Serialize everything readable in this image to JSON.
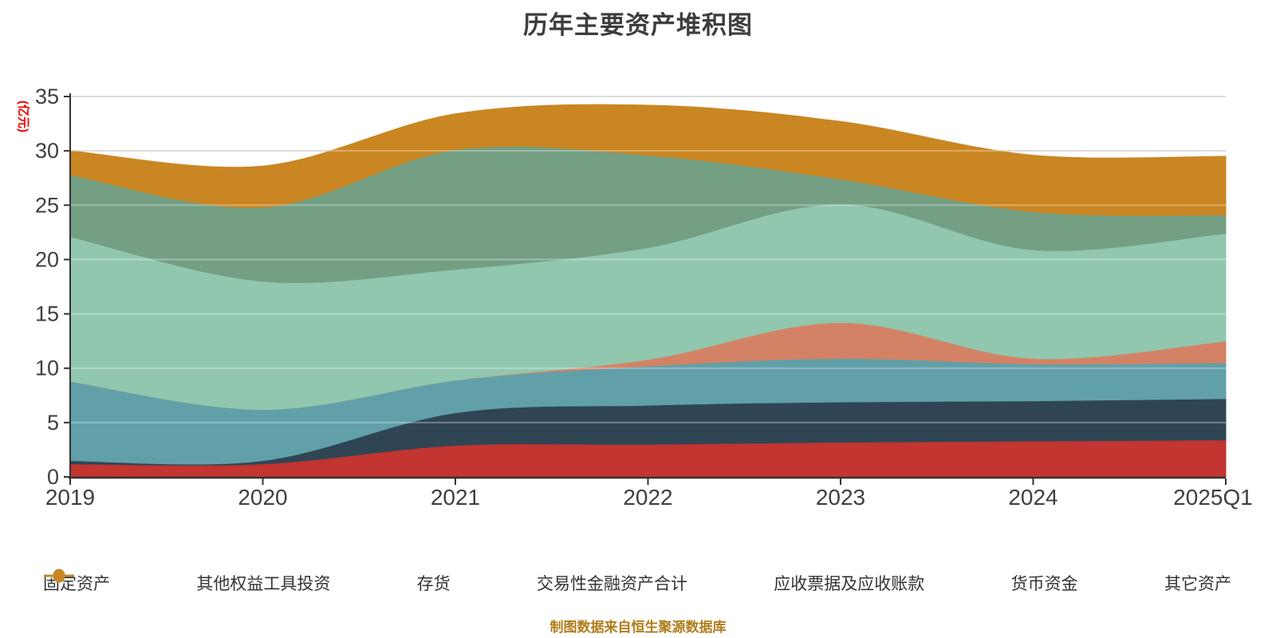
{
  "title": "历年主要资产堆积图",
  "y_axis_unit": "(亿元)",
  "footer": "制图数据来自恒生聚源数据库",
  "colors": {
    "title_text": "#3d3d3d",
    "axis_text": "#3f3f3f",
    "axis_line": "#333333",
    "gridline": "#cccccc",
    "grid_overlay": "rgba(255,255,255,0.32)",
    "unit_label": "#ee0000",
    "footer_text": "#b07d1a",
    "legend_text": "#333333",
    "background": "#ffffff"
  },
  "chart_data": {
    "type": "area",
    "stacked": true,
    "smooth": true,
    "title": "历年主要资产堆积图",
    "ylabel": "(亿元)",
    "xlabel": "",
    "ylim": [
      0,
      35
    ],
    "y_ticks": [
      0,
      5,
      10,
      15,
      20,
      25,
      30,
      35
    ],
    "grid": true,
    "legend_position": "bottom",
    "categories": [
      "2019",
      "2020",
      "2021",
      "2022",
      "2023",
      "2024",
      "2025Q1"
    ],
    "series": [
      {
        "name": "固定资产",
        "color": "#c23531",
        "values": [
          1.2,
          1.2,
          2.9,
          3.0,
          3.2,
          3.3,
          3.4
        ]
      },
      {
        "name": "其他权益工具投资",
        "color": "#2f4554",
        "values": [
          0.3,
          0.3,
          3.0,
          3.6,
          3.7,
          3.7,
          3.8
        ]
      },
      {
        "name": "存货",
        "color": "#61a0a8",
        "values": [
          7.3,
          4.7,
          3.0,
          3.6,
          4.0,
          3.4,
          3.3
        ]
      },
      {
        "name": "交易性金融资产合计",
        "color": "#d48265",
        "values": [
          0.0,
          0.0,
          0.0,
          0.6,
          3.3,
          0.5,
          2.0
        ]
      },
      {
        "name": "应收票据及应收账款",
        "color": "#91c7ae",
        "values": [
          13.3,
          11.8,
          10.2,
          10.3,
          10.9,
          10.0,
          9.9
        ]
      },
      {
        "name": "货币资金",
        "color": "#749f83",
        "values": [
          5.7,
          6.8,
          11.0,
          8.5,
          2.3,
          3.5,
          1.7
        ]
      },
      {
        "name": "其它资产",
        "color": "#ca8622",
        "values": [
          2.2,
          3.8,
          3.3,
          4.6,
          5.3,
          5.2,
          5.4
        ]
      }
    ],
    "cumulative_totals": [
      30.0,
      28.6,
      33.4,
      34.2,
      32.7,
      29.6,
      29.5
    ]
  }
}
